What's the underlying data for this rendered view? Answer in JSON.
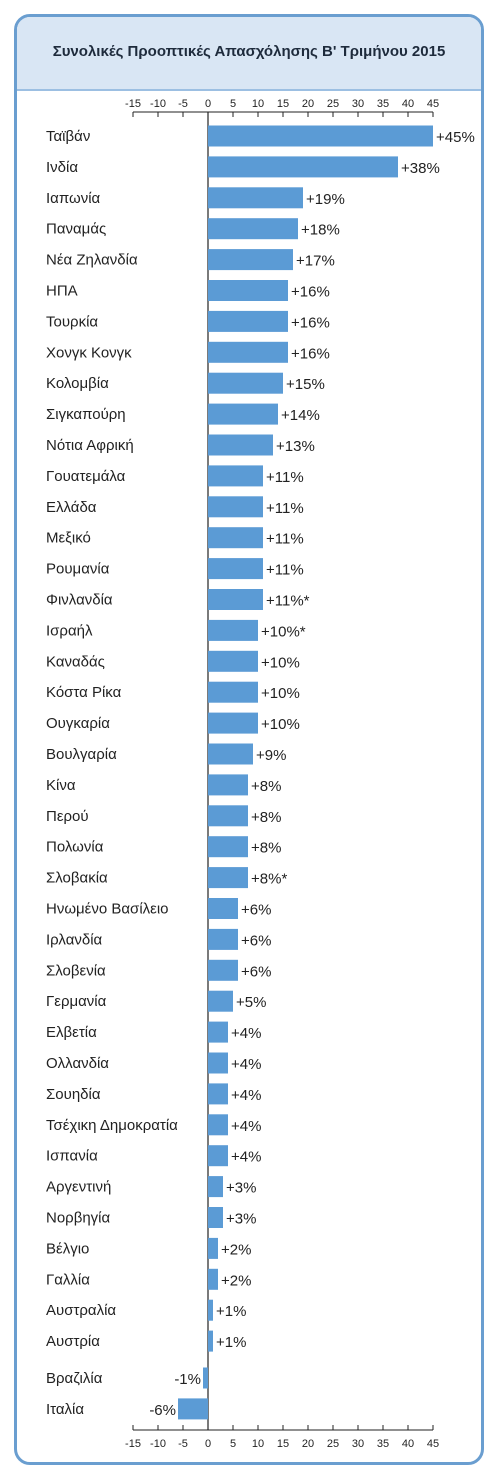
{
  "chart_data": {
    "type": "bar",
    "orientation": "horizontal",
    "title": "Συνολικές Προοπτικές Απασχόλησης Β' Τριμήνου 2015",
    "xlim": [
      -15,
      45
    ],
    "xticks": [
      "-15",
      "-10",
      "-5",
      "0",
      "5",
      "10",
      "15",
      "20",
      "25",
      "30",
      "35",
      "40",
      "45"
    ],
    "tick_values": [
      -15,
      -10,
      -5,
      0,
      5,
      10,
      15,
      20,
      25,
      30,
      35,
      40,
      45
    ],
    "bar_color": "#5b9bd5",
    "axis_color": "#222222",
    "categories": [
      "Ταϊβάν",
      "Ινδία",
      "Ιαπωνία",
      "Παναμάς",
      "Νέα Ζηλανδία",
      "ΗΠΑ",
      "Τουρκία",
      "Χονγκ Κονγκ",
      "Κολομβία",
      "Σιγκαπούρη",
      "Νότια Αφρική",
      "Γουατεμάλα",
      "Ελλάδα",
      "Μεξικό",
      "Ρουμανία",
      "Φινλανδία",
      "Ισραήλ",
      "Καναδάς",
      "Κόστα Ρίκα",
      "Ουγκαρία",
      "Βουλγαρία",
      "Κίνα",
      "Περού",
      "Πολωνία",
      "Σλοβακία",
      "Ηνωμένο Βασίλειο",
      "Ιρλανδία",
      "Σλοβενία",
      "Γερμανία",
      "Ελβετία",
      "Ολλανδία",
      "Σουηδία",
      "Τσέχικη Δημοκρατία",
      "Ισπανία",
      "Αργεντινή",
      "Νορβηγία",
      "Βέλγιο",
      "Γαλλία",
      "Αυστραλία",
      "Αυστρία",
      "Βραζιλία",
      "Ιταλία"
    ],
    "values": [
      45,
      38,
      19,
      18,
      17,
      16,
      16,
      16,
      15,
      14,
      13,
      11,
      11,
      11,
      11,
      11,
      10,
      10,
      10,
      10,
      9,
      8,
      8,
      8,
      8,
      6,
      6,
      6,
      5,
      4,
      4,
      4,
      4,
      4,
      3,
      3,
      2,
      2,
      1,
      1,
      -1,
      -6
    ],
    "labels": [
      "+45%",
      "+38%",
      "+19%",
      "+18%",
      "+17%",
      "+16%",
      "+16%",
      "+16%",
      "+15%",
      "+14%",
      "+13%",
      "+11%",
      "+11%",
      "+11%",
      "+11%",
      "+11%*",
      "+10%*",
      "+10%",
      "+10%",
      "+10%",
      "+9%",
      "+8%",
      "+8%",
      "+8%",
      "+8%*",
      "+6%",
      "+6%",
      "+6%",
      "+5%",
      "+4%",
      "+4%",
      "+4%",
      "+4%",
      "+4%",
      "+3%",
      "+3%",
      "+2%",
      "+2%",
      "+1%",
      "+1%",
      "-1%",
      "-6%"
    ]
  }
}
